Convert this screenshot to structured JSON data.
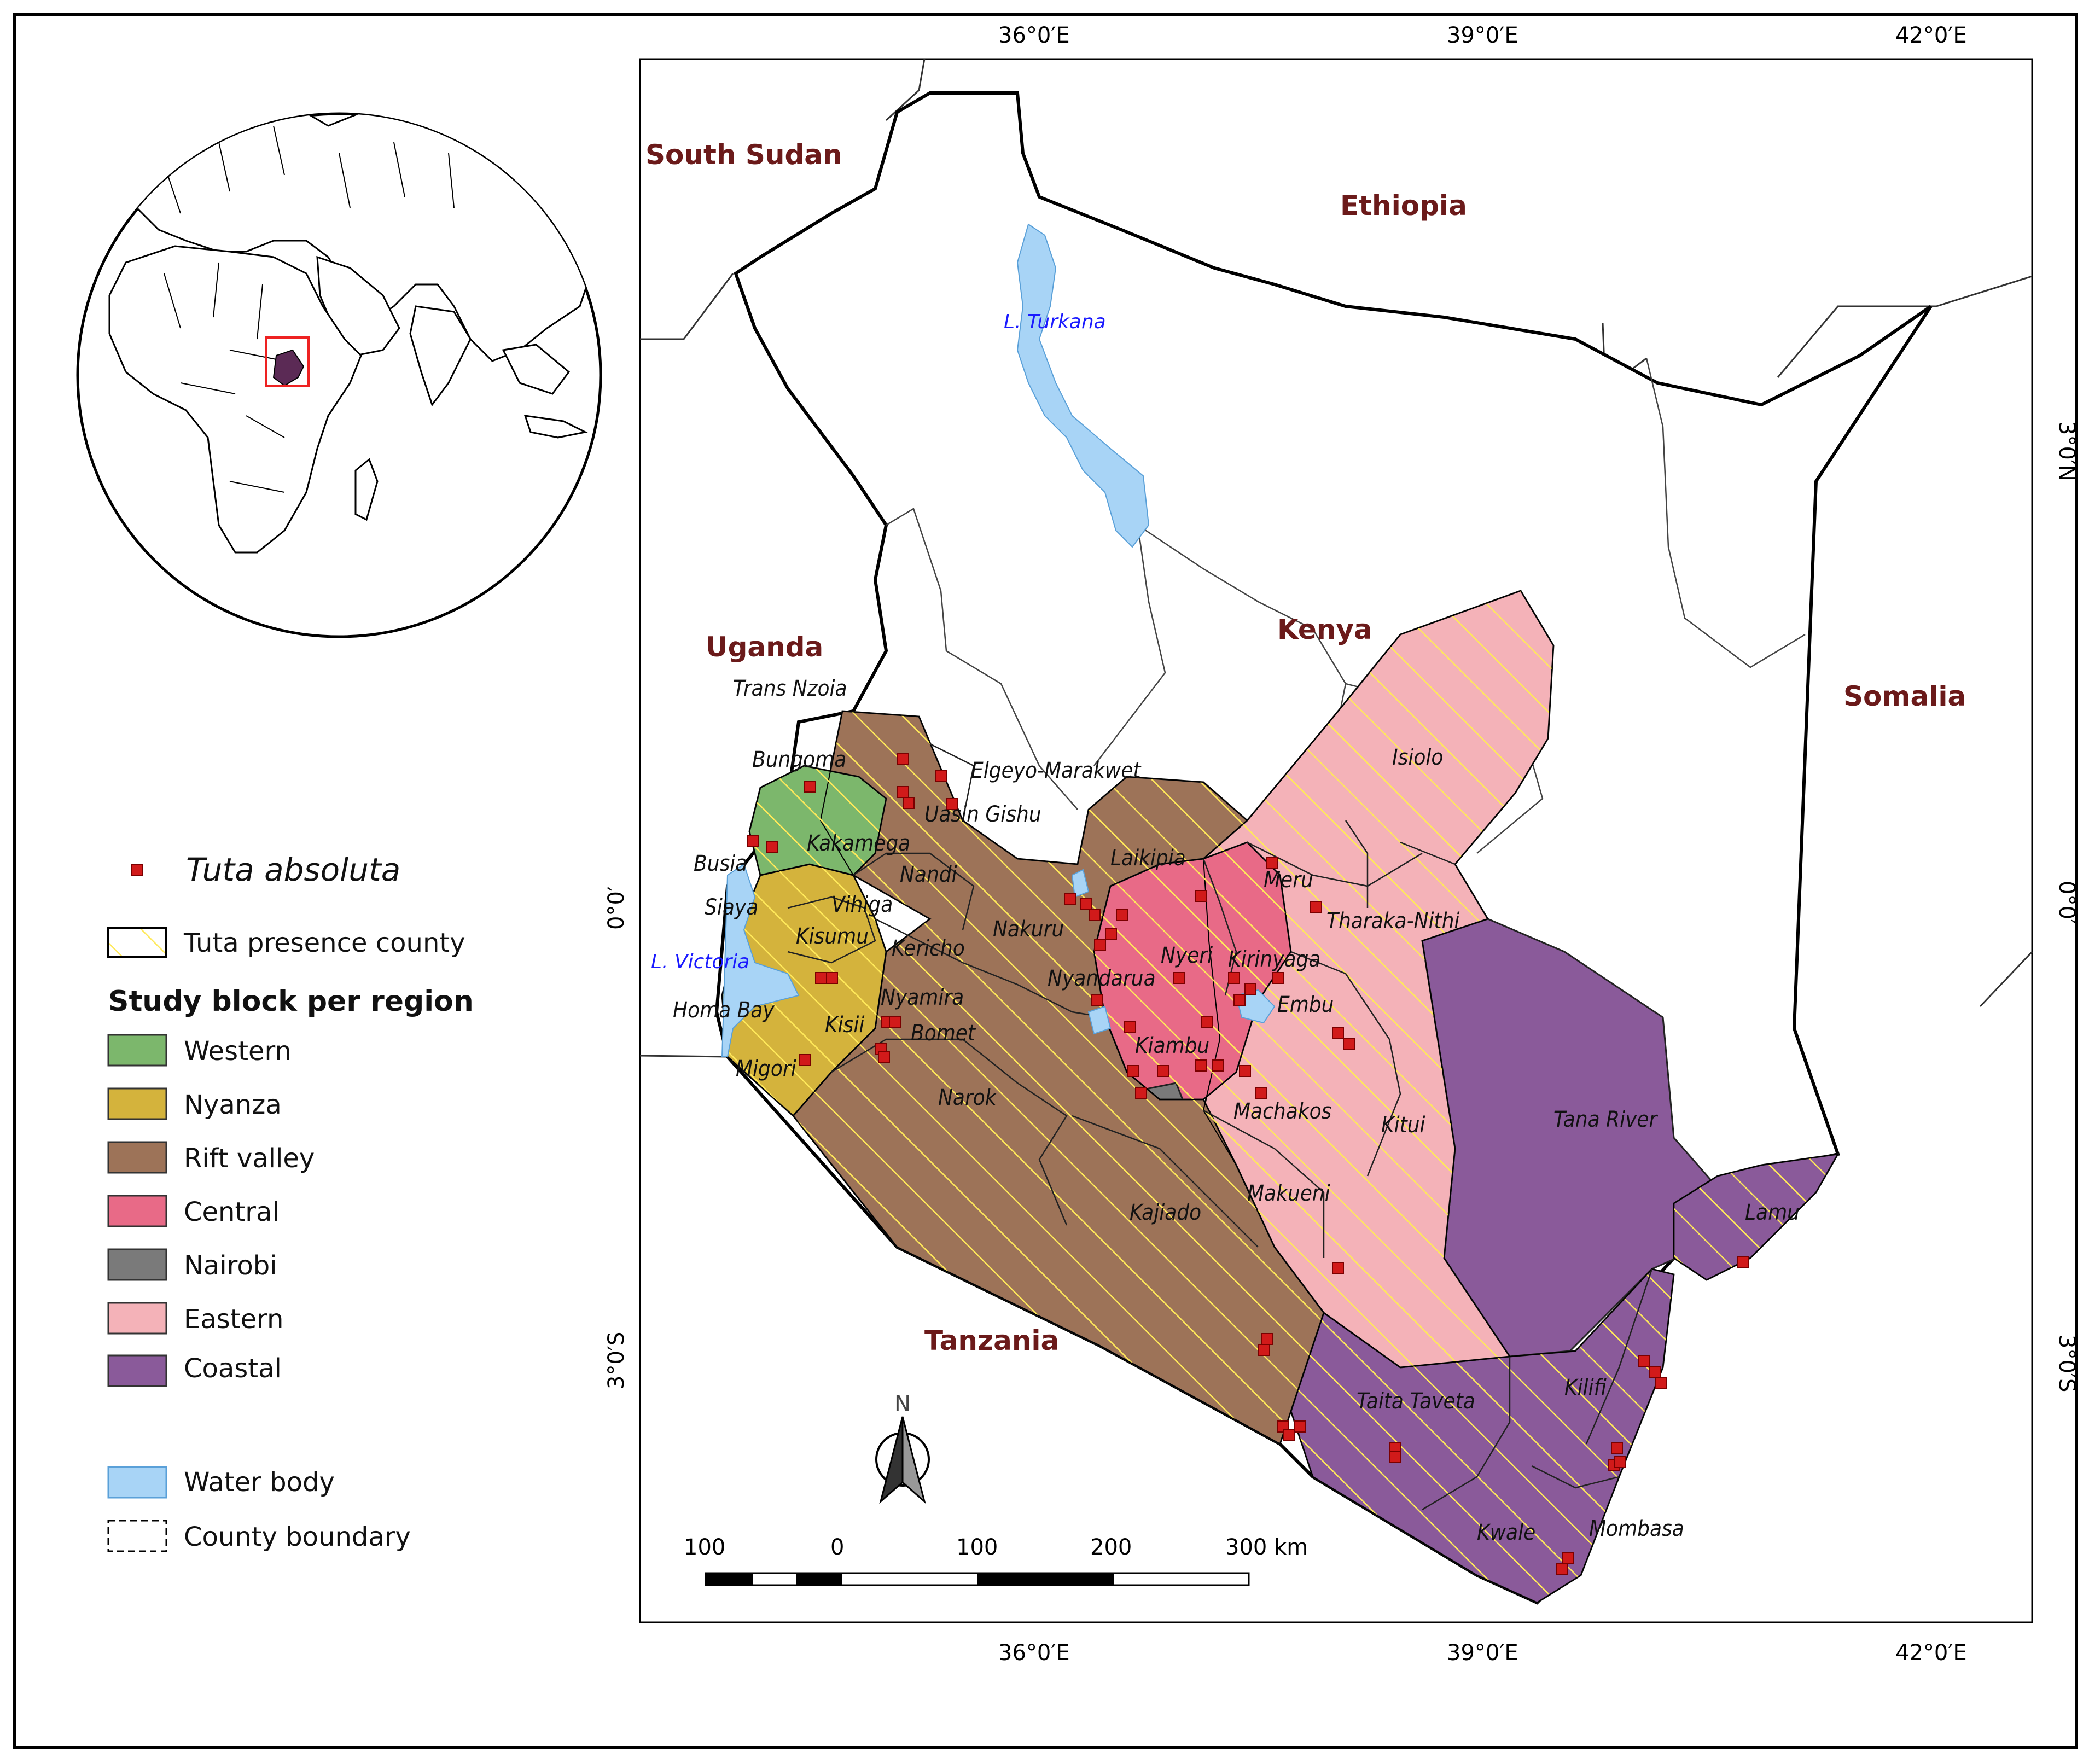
{
  "colors": {
    "western": "#7cb76c",
    "nyanza": "#d4b33c",
    "rift_valley": "#9d7358",
    "central": "#e86a87",
    "nairobi": "#7a7a7a",
    "eastern": "#f4b2b8",
    "coastal": "#8a5a9a",
    "water": "#a8d4f6",
    "point": "#d11a1a",
    "hatch": "#ffe95a",
    "country_label": "#6b1a1a",
    "water_label": "#1a1aff"
  },
  "map": {
    "countries": [
      "South Sudan",
      "Ethiopia",
      "Uganda",
      "Kenya",
      "Somalia",
      "Tanzania"
    ],
    "water_bodies": [
      "L. Turkana",
      "L. Victoria"
    ],
    "counties": [
      "Trans Nzoia",
      "Bungoma",
      "Elgeyo-Marakwet",
      "Uasin Gishu",
      "Busia",
      "Kakamega",
      "Nandi",
      "Laikipia",
      "Meru",
      "Isiolo",
      "Siaya",
      "Vihiga",
      "Kisumu",
      "Nakuru",
      "Tharaka-Nithi",
      "Kericho",
      "Nyeri",
      "Kirinyaga",
      "Nyandarua",
      "Embu",
      "Homa Bay",
      "Nyamira",
      "Kisii",
      "Bomet",
      "Kiambu",
      "Migori",
      "Narok",
      "Machakos",
      "Kitui",
      "Tana River",
      "Makueni",
      "Kajiado",
      "Lamu",
      "Taita Taveta",
      "Kilifi",
      "Kwale",
      "Mombasa"
    ],
    "north_arrow_label": "N"
  },
  "axes": {
    "top_labels": [
      "36°0′E",
      "39°0′E",
      "42°0′E"
    ],
    "bottom_labels": [
      "36°0′E",
      "39°0′E",
      "42°0′E"
    ],
    "left_labels": [
      "0°0′",
      "3°0′S"
    ],
    "right_labels": [
      "3°0′N",
      "0°0′",
      "3°0′S"
    ]
  },
  "scale_bar": {
    "labels": [
      "100",
      "0",
      "100",
      "200",
      "300 km"
    ]
  },
  "legend": {
    "point_label": "Tuta absoluta",
    "presence_label": "Tuta presence county",
    "regions_title": "Study block per region",
    "regions": [
      "Western",
      "Nyanza",
      "Rift valley",
      "Central",
      "Nairobi",
      "Eastern",
      "Coastal"
    ],
    "water_label": "Water body",
    "boundary_label": "County boundary"
  }
}
